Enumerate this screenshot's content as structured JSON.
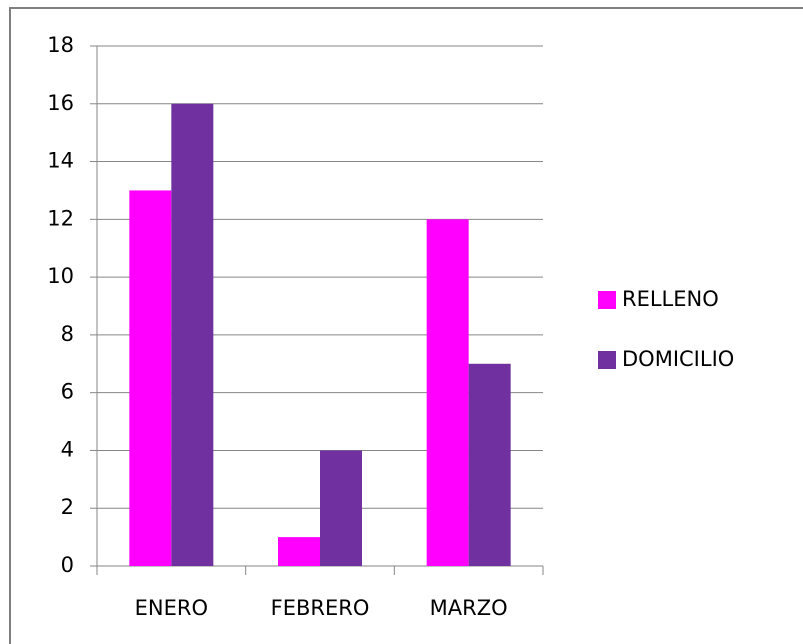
{
  "chart_data": {
    "type": "bar",
    "categories": [
      "ENERO",
      "FEBRERO",
      "MARZO"
    ],
    "series": [
      {
        "name": "RELLENO",
        "color": "#ff00ff",
        "values": [
          13,
          1,
          12
        ]
      },
      {
        "name": "DOMICILIO",
        "color": "#7030a0",
        "values": [
          16,
          4,
          7
        ]
      }
    ],
    "ylim": [
      0,
      18
    ],
    "yticks": [
      0,
      2,
      4,
      6,
      8,
      10,
      12,
      14,
      16,
      18
    ],
    "grid": true,
    "legend": "right"
  }
}
